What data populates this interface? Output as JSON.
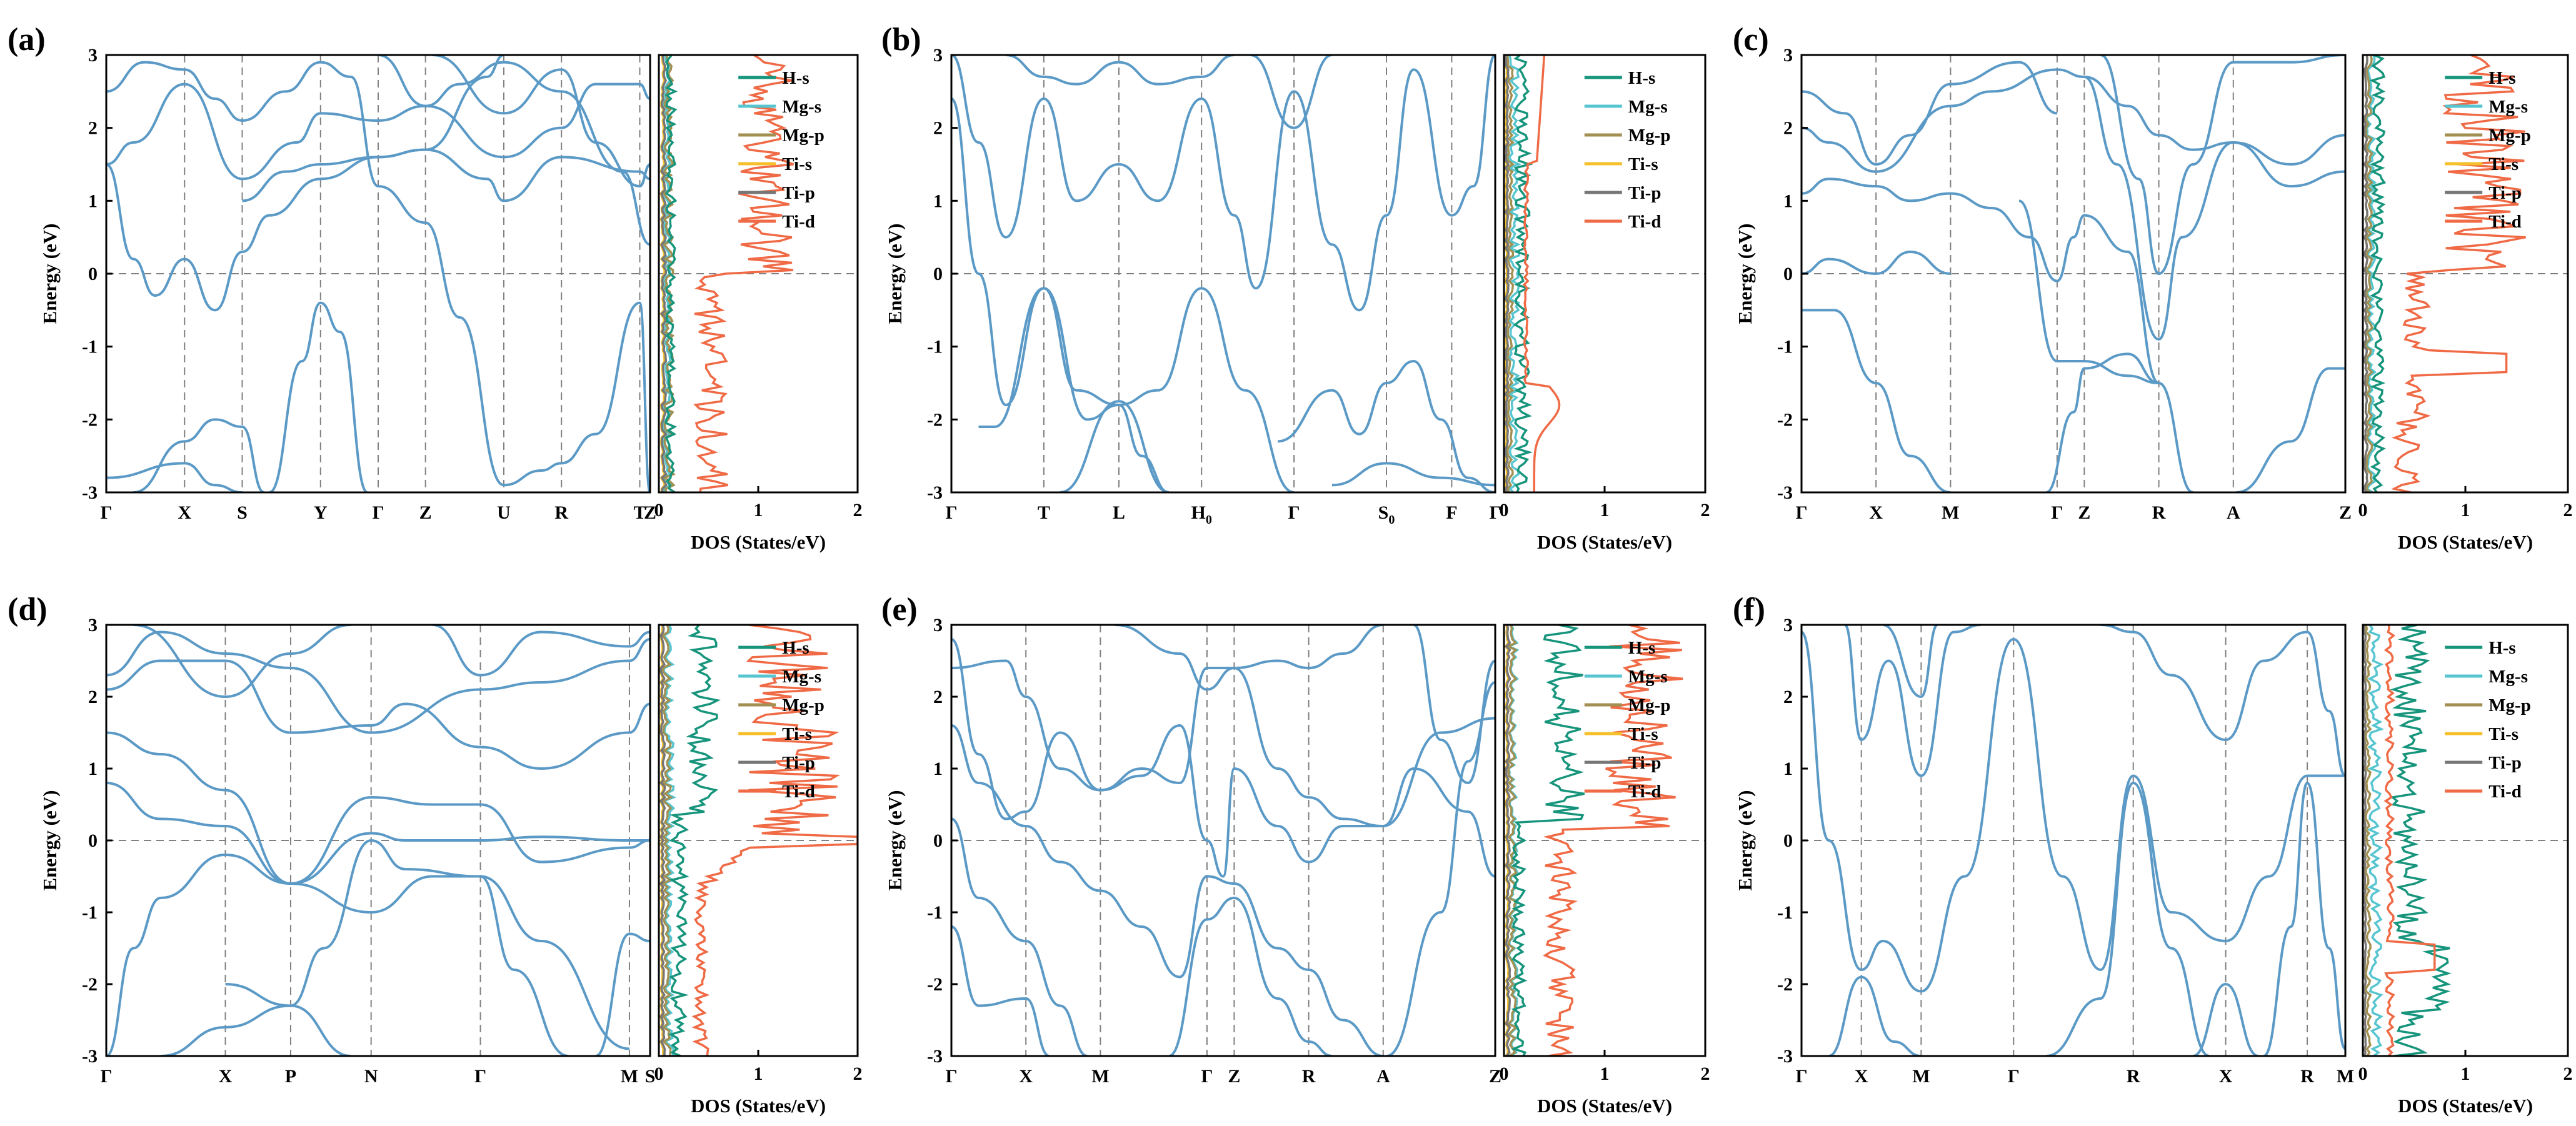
{
  "colors": {
    "band": "#5b9ac6",
    "H-s": "#17957c",
    "Mg-s": "#57c5d0",
    "Mg-p": "#a28f52",
    "Ti-s": "#f5c02c",
    "Ti-p": "#767676",
    "Ti-d": "#ef6a45"
  },
  "chart_data": [
    {
      "type": "line",
      "panel": "(a)",
      "band": {
        "ylabel": "Energy (eV)",
        "ylim": [
          -3,
          3
        ],
        "yticks": [
          "-3",
          "-2",
          "-1",
          "0",
          "1",
          "2",
          "3"
        ],
        "kpoints": [
          {
            "label": "Γ",
            "x": 0.0
          },
          {
            "label": "X",
            "x": 0.144
          },
          {
            "label": "S",
            "x": 0.25
          },
          {
            "label": "Y",
            "x": 0.394
          },
          {
            "label": "Γ",
            "x": 0.5
          },
          {
            "label": "Z",
            "x": 0.587
          },
          {
            "label": "U",
            "x": 0.731
          },
          {
            "label": "R",
            "x": 0.837
          },
          {
            "label": "T",
            "x": 0.981
          },
          {
            "label": "Z",
            "x": 1.0
          }
        ]
      },
      "dos": {
        "xlabel": "DOS (States/eV)",
        "xlim": [
          0,
          2
        ],
        "xticks": [
          "0",
          "1",
          "2"
        ],
        "legend_rows": [
          "H-s",
          "Mg-s",
          "Mg-p",
          "Ti-s",
          "Ti-p",
          "Ti-d"
        ]
      }
    },
    {
      "type": "line",
      "panel": "(b)",
      "band": {
        "ylabel": "Energy (eV)",
        "ylim": [
          -3,
          3
        ],
        "yticks": [
          "-3",
          "-2",
          "-1",
          "0",
          "1",
          "2",
          "3"
        ],
        "kpoints": [
          {
            "label": "Γ",
            "x": 0.0
          },
          {
            "label": "T",
            "x": 0.17
          },
          {
            "label": "L",
            "x": 0.308
          },
          {
            "label": "H",
            "sub": "0",
            "x": 0.46
          },
          {
            "label": "Γ",
            "x": 0.63
          },
          {
            "label": "S",
            "sub": "0",
            "x": 0.8
          },
          {
            "label": "F",
            "x": 0.92
          },
          {
            "label": "Γ",
            "x": 1.0
          }
        ]
      },
      "dos": {
        "xlabel": "DOS (States/eV)",
        "xlim": [
          0,
          2
        ],
        "xticks": [
          "0",
          "1",
          "2"
        ],
        "legend_rows": [
          "H-s",
          "Mg-s",
          "Mg-p",
          "Ti-s",
          "Ti-p",
          "Ti-d"
        ]
      }
    },
    {
      "type": "line",
      "panel": "(c)",
      "band": {
        "ylabel": "Energy (eV)",
        "ylim": [
          -3,
          3
        ],
        "yticks": [
          "-3",
          "-2",
          "-1",
          "0",
          "1",
          "2",
          "3"
        ],
        "kpoints": [
          {
            "label": "Γ",
            "x": 0.0
          },
          {
            "label": "X",
            "x": 0.137
          },
          {
            "label": "M",
            "x": 0.274
          },
          {
            "label": "Γ",
            "x": 0.47
          },
          {
            "label": "Z",
            "x": 0.52
          },
          {
            "label": "R",
            "x": 0.657
          },
          {
            "label": "A",
            "x": 0.794
          },
          {
            "label": "Z",
            "x": 1.0
          }
        ]
      },
      "dos": {
        "xlabel": "DOS (States/eV)",
        "xlim": [
          0,
          2
        ],
        "xticks": [
          "0",
          "1",
          "2"
        ],
        "legend_rows": [
          "H-s",
          "Mg-s",
          "Mg-p",
          "Ti-s",
          "Ti-p",
          "Ti-d"
        ]
      }
    },
    {
      "type": "line",
      "panel": "(d)",
      "band": {
        "ylabel": "Energy (eV)",
        "ylim": [
          -3,
          3
        ],
        "yticks": [
          "-3",
          "-2",
          "-1",
          "0",
          "1",
          "2",
          "3"
        ],
        "kpoints": [
          {
            "label": "Γ",
            "x": 0.0
          },
          {
            "label": "X",
            "x": 0.219
          },
          {
            "label": "P",
            "x": 0.339
          },
          {
            "label": "N",
            "x": 0.487
          },
          {
            "label": "Γ",
            "x": 0.688
          },
          {
            "label": "M",
            "x": 0.962
          },
          {
            "label": "S",
            "x": 1.0
          }
        ]
      },
      "dos": {
        "xlabel": "DOS (States/eV)",
        "xlim": [
          0,
          2
        ],
        "xticks": [
          "0",
          "1",
          "2"
        ],
        "legend_rows": [
          "H-s",
          "Mg-s",
          "Mg-p",
          "Ti-s",
          "Ti-p",
          "Ti-d"
        ]
      }
    },
    {
      "type": "line",
      "panel": "(e)",
      "band": {
        "ylabel": "Energy (eV)",
        "ylim": [
          -3,
          3
        ],
        "yticks": [
          "-3",
          "-2",
          "-1",
          "0",
          "1",
          "2",
          "3"
        ],
        "kpoints": [
          {
            "label": "Γ",
            "x": 0.0
          },
          {
            "label": "X",
            "x": 0.137
          },
          {
            "label": "M",
            "x": 0.274
          },
          {
            "label": "Γ",
            "x": 0.47
          },
          {
            "label": "Z",
            "x": 0.52
          },
          {
            "label": "R",
            "x": 0.657
          },
          {
            "label": "A",
            "x": 0.794
          },
          {
            "label": "Z",
            "x": 1.0
          }
        ]
      },
      "dos": {
        "xlabel": "DOS (States/eV)",
        "xlim": [
          0,
          2
        ],
        "xticks": [
          "0",
          "1",
          "2"
        ],
        "legend_rows": [
          "H-s",
          "Mg-s",
          "Mg-p",
          "Ti-s",
          "Ti-p",
          "Ti-d"
        ]
      }
    },
    {
      "type": "line",
      "panel": "(f)",
      "band": {
        "ylabel": "Energy (eV)",
        "ylim": [
          -3,
          3
        ],
        "yticks": [
          "-3",
          "-2",
          "-1",
          "0",
          "1",
          "2",
          "3"
        ],
        "kpoints": [
          {
            "label": "Γ",
            "x": 0.0
          },
          {
            "label": "X",
            "x": 0.11
          },
          {
            "label": "M",
            "x": 0.22
          },
          {
            "label": "Γ",
            "x": 0.39
          },
          {
            "label": "R",
            "x": 0.61
          },
          {
            "label": "X",
            "x": 0.78
          },
          {
            "label": "R",
            "x": 0.93
          },
          {
            "label": "M",
            "x": 1.0
          }
        ]
      },
      "dos": {
        "xlabel": "DOS (States/eV)",
        "xlim": [
          0,
          2
        ],
        "xticks": [
          "0",
          "1",
          "2"
        ],
        "legend_rows": [
          "H-s",
          "Mg-s",
          "Mg-p",
          "Ti-s",
          "Ti-p",
          "Ti-d"
        ]
      }
    }
  ]
}
